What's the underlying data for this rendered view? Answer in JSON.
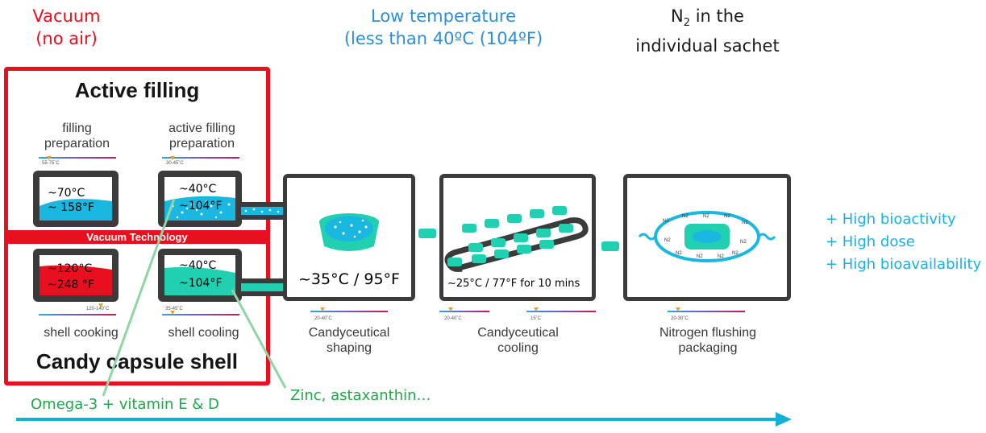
{
  "headers": {
    "vacuum_line1": "Vacuum",
    "vacuum_line2": "(no air)",
    "lowtemp_line1": "Low temperature",
    "lowtemp_line2": "(less than 40ºC (104ºF)",
    "n2_line1": "N",
    "n2_sub": "2",
    "n2_line1_rest": " in the",
    "n2_line2": "individual sachet"
  },
  "left_panel": {
    "title_top": "Active filling",
    "title_bottom": "Candy capsule shell",
    "vacuum_band": "Vacuum Technology",
    "filling_prep": {
      "line1": "filling",
      "line2": "preparation",
      "range": "55-75˚C",
      "temp_c": "~70°C",
      "temp_f": "~ 158°F"
    },
    "active_filling_prep": {
      "line1": "active filling",
      "line2": "preparation",
      "range": "30-45˚C",
      "temp_c": "~40°C",
      "temp_f": "~104°F"
    },
    "shell_cooking": {
      "label": "shell cooking",
      "range": "120-140˚C",
      "temp_c": "~120°C",
      "temp_f": "~248 °F"
    },
    "shell_cooling": {
      "label": "shell cooling",
      "range": "35-45˚C",
      "temp_c": "~40°C",
      "temp_f": "~104°F"
    }
  },
  "stations": [
    {
      "line1": "Candyceutical",
      "line2": "shaping",
      "range": "20-40˚C",
      "temp": "~35°C / 95°F"
    },
    {
      "line1": "Candyceutical",
      "line2": "cooling",
      "range1": "20-40˚C",
      "range2": "15˚C",
      "temp": "~25°C / 77°F for 10 mins"
    },
    {
      "line1": "Nitrogen flushing",
      "line2": "packaging",
      "range": "20-30˚C",
      "n2_label": "N2"
    }
  ],
  "benefits": [
    "+ High bioactivity",
    "+ High dose",
    "+ High bioavailability"
  ],
  "ingredients": {
    "omega": "Omega-3 + vitamin E & D",
    "zinc": "Zinc, astaxanthin…"
  },
  "colors": {
    "red": "#e8101e",
    "blue_header": "#2d8fd6",
    "green": "#1ea84a",
    "benefit": "#1ab0e0",
    "teal": "#20d0b8",
    "cyan": "#1ab8e0",
    "arrow": "#14b0d8"
  }
}
